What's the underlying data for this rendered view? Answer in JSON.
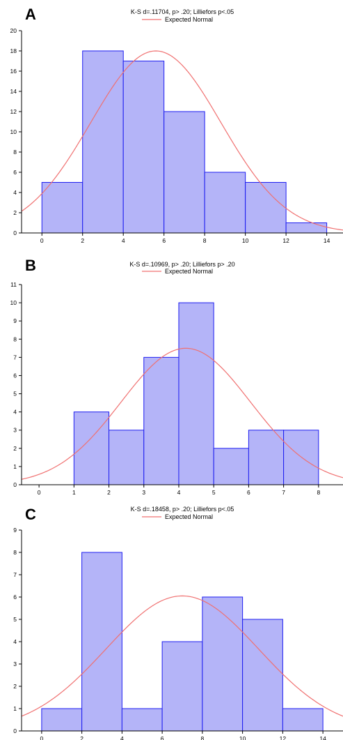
{
  "colors": {
    "bar_fill": "#b4b4f8",
    "bar_stroke": "#1d1df0",
    "curve": "#f07070",
    "axis": "#000000"
  },
  "chart_data": [
    {
      "type": "bar",
      "panel": "A",
      "stat_text": "K-S d=.11704, p> .20; Lilliefors p<.05",
      "legend": "Expected Normal",
      "bins": [
        [
          0,
          2
        ],
        [
          2,
          4
        ],
        [
          4,
          6
        ],
        [
          6,
          8
        ],
        [
          8,
          10
        ],
        [
          10,
          12
        ],
        [
          12,
          14
        ]
      ],
      "values": [
        5,
        18,
        17,
        12,
        6,
        5,
        1
      ],
      "xlim": [
        -1,
        14.8
      ],
      "ylim": [
        0,
        20
      ],
      "xticks": [
        0,
        2,
        4,
        6,
        8,
        10,
        12,
        14
      ],
      "yticks": [
        0,
        2,
        4,
        6,
        8,
        10,
        12,
        14,
        16,
        18,
        20
      ],
      "expected_normal": {
        "mean": 5.6,
        "sd": 3.2,
        "peak": 18
      }
    },
    {
      "type": "bar",
      "panel": "B",
      "stat_text": "K-S d=.10969, p> .20; Lilliefors p> .20",
      "legend": "Expected Normal",
      "bins": [
        [
          1,
          2
        ],
        [
          2,
          3
        ],
        [
          3,
          4
        ],
        [
          4,
          5
        ],
        [
          5,
          6
        ],
        [
          6,
          7
        ],
        [
          7,
          8
        ]
      ],
      "values": [
        4,
        3,
        7,
        10,
        2,
        3,
        3
      ],
      "xlim": [
        -0.5,
        8.7
      ],
      "ylim": [
        0,
        11
      ],
      "xticks": [
        0,
        1,
        2,
        3,
        4,
        5,
        6,
        7,
        8
      ],
      "yticks": [
        0,
        1,
        2,
        3,
        4,
        5,
        6,
        7,
        8,
        9,
        10,
        11
      ],
      "expected_normal": {
        "mean": 4.2,
        "sd": 1.85,
        "peak": 7.5
      }
    },
    {
      "type": "bar",
      "panel": "C",
      "stat_text": "K-S d=.18458, p> .20; Lilliefors p<.05",
      "legend": "Expected Normal",
      "bins": [
        [
          0,
          2
        ],
        [
          2,
          4
        ],
        [
          4,
          6
        ],
        [
          6,
          8
        ],
        [
          8,
          10
        ],
        [
          10,
          12
        ],
        [
          12,
          14
        ]
      ],
      "values": [
        1,
        8,
        1,
        4,
        6,
        5,
        1
      ],
      "xlim": [
        -1,
        15
      ],
      "ylim": [
        0,
        9
      ],
      "xticks": [
        0,
        2,
        4,
        6,
        8,
        10,
        12,
        14
      ],
      "yticks": [
        0,
        1,
        2,
        3,
        4,
        5,
        6,
        7,
        8,
        9
      ],
      "expected_normal": {
        "mean": 7.0,
        "sd": 3.8,
        "peak": 6.05
      }
    }
  ]
}
